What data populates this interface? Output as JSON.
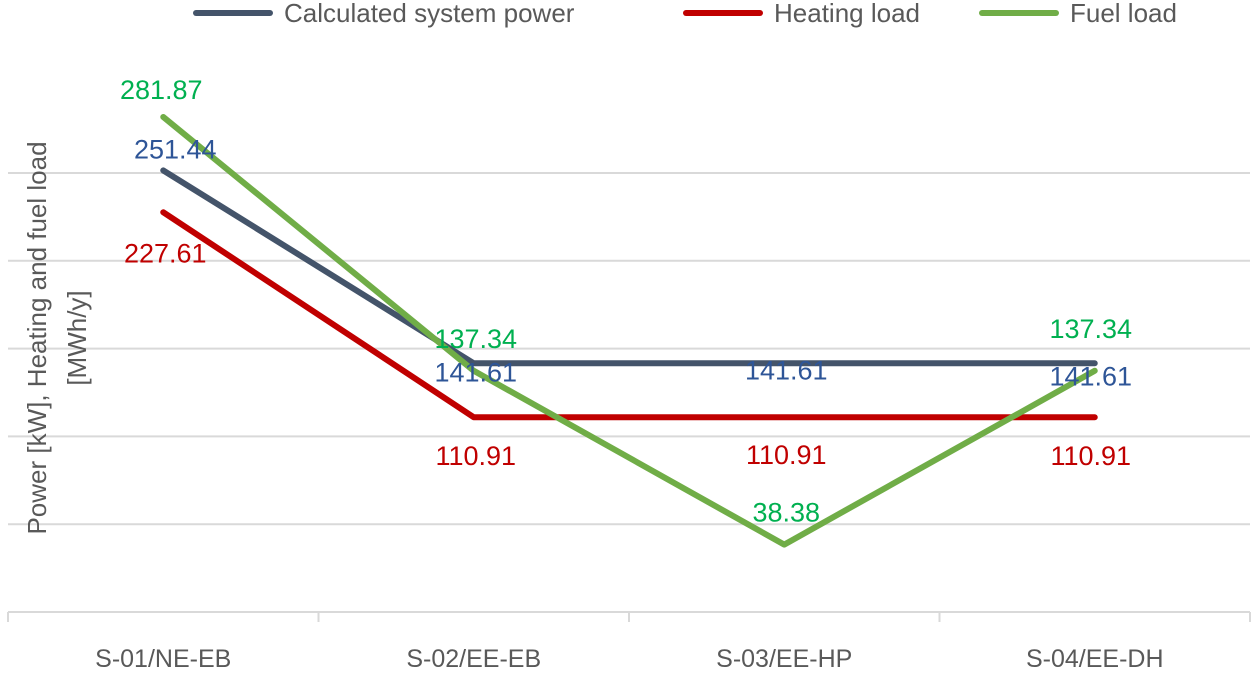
{
  "chart_data": {
    "type": "line",
    "title": "",
    "xlabel": "",
    "ylabel_lines": [
      "Power [kW], Heating and fuel load",
      "[MWh/y]"
    ],
    "categories": [
      "S-01/NE-EB",
      "S-02/EE-EB",
      "S-03/EE-HP",
      "S-04/EE-DH"
    ],
    "ylim": [
      0,
      320
    ],
    "grid": true,
    "legend_position": "top",
    "series": [
      {
        "name": "Calculated system power",
        "values": [
          251.44,
          141.61,
          141.61,
          141.61
        ],
        "labels": [
          "251.44",
          "141.61",
          "141.61",
          "141.61"
        ],
        "color": "#44546a",
        "label_color": "#2e5597"
      },
      {
        "name": "Heating load",
        "values": [
          227.61,
          110.91,
          110.91,
          110.91
        ],
        "labels": [
          "227.61",
          "110.91",
          "110.91",
          "110.91"
        ],
        "color": "#c00000",
        "label_color": "#c00000"
      },
      {
        "name": "Fuel load",
        "values": [
          281.87,
          137.34,
          38.38,
          137.34
        ],
        "labels": [
          "281.87",
          "137.34",
          "38.38",
          "137.34"
        ],
        "color": "#70ad47",
        "label_color": "#00b050"
      }
    ]
  }
}
